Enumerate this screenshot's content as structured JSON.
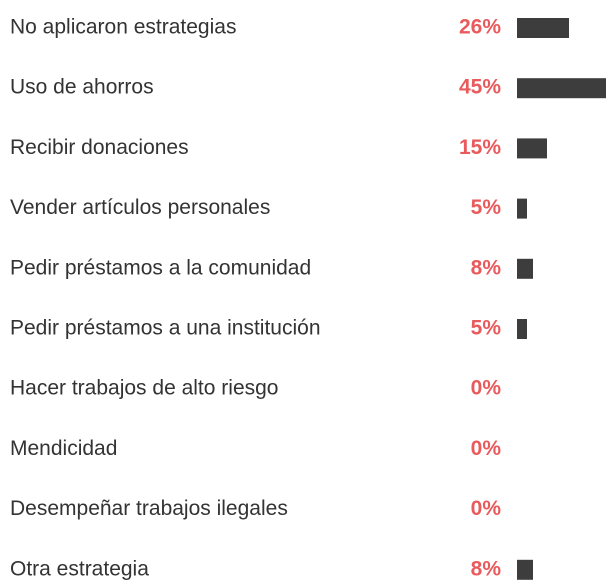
{
  "chart_data": {
    "type": "bar",
    "orientation": "horizontal",
    "categories": [
      "No aplicaron estrategias",
      "Uso de ahorros",
      "Recibir donaciones",
      "Vender artículos personales",
      "Pedir préstamos a la comunidad",
      "Pedir préstamos a una institución",
      "Hacer trabajos de alto riesgo",
      "Mendicidad",
      "Desempeñar trabajos ilegales",
      "Otra estrategia"
    ],
    "values": [
      26,
      45,
      15,
      5,
      8,
      5,
      0,
      0,
      0,
      8
    ],
    "value_labels": [
      "26%",
      "45%",
      "15%",
      "5%",
      "8%",
      "5%",
      "0%",
      "0%",
      "0%",
      "8%"
    ],
    "color": "#3d3d3d",
    "label_color": "#e95a5c"
  }
}
